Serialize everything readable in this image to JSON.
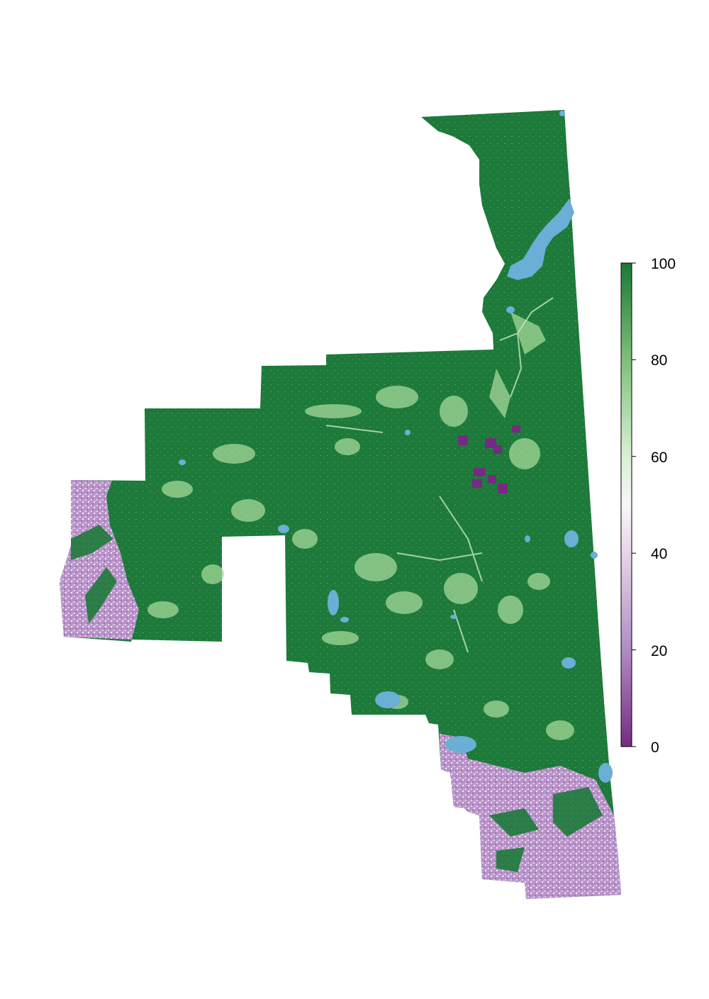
{
  "legend": {
    "ticks": [
      {
        "value": 100,
        "label": "100"
      },
      {
        "value": 80,
        "label": "80"
      },
      {
        "value": 60,
        "label": "60"
      },
      {
        "value": 40,
        "label": "40"
      },
      {
        "value": 20,
        "label": "20"
      },
      {
        "value": 0,
        "label": "0"
      }
    ],
    "range": [
      0,
      100
    ],
    "colors": {
      "0": "#762a83",
      "20": "#af8dc3",
      "40": "#e7d4e8",
      "50": "#f7f7f7",
      "60": "#d9f0d3",
      "80": "#7fbf7b",
      "100": "#1b7837"
    }
  },
  "map": {
    "water_color": "#6baed6",
    "forest_color": "#1d7a3a",
    "light_forest_color": "#a6d99a"
  }
}
